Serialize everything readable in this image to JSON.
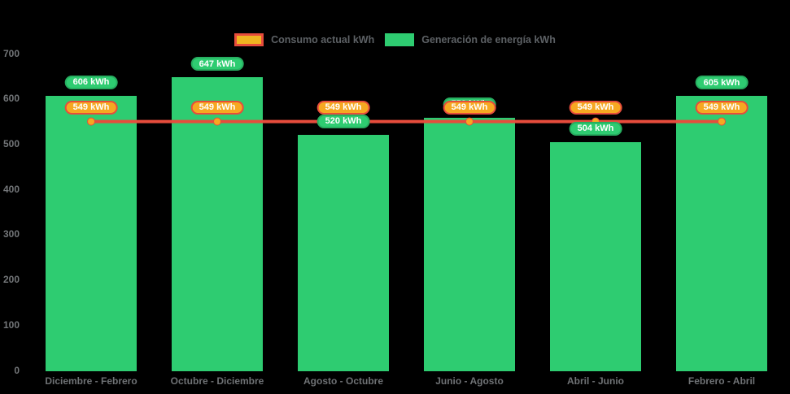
{
  "colors": {
    "background": "#000000",
    "bar_green": "#2ecc71",
    "bar_badge_border": "#27ae60",
    "line_red": "#e74c3c",
    "marker_orange": "#f6a821",
    "consumo_badge_bg": "#f6a821",
    "consumo_badge_border": "#e74c3c",
    "legend_swatch_consumo_fill": "#f0b421",
    "tick_text": "#737679",
    "legend_text": "#5d6165"
  },
  "legend": {
    "consumo_label": "Consumo actual kWh",
    "generacion_label": "Generación de energía kWh"
  },
  "chart_data": {
    "type": "bar",
    "subtype": "bar+line-combo",
    "background": "#000000",
    "grid": false,
    "legend_position": "top",
    "categories": [
      "Diciembre - Febrero",
      "Octubre - Diciembre",
      "Agosto - Octubre",
      "Junio - Agosto",
      "Abril - Junio",
      "Febrero - Abril"
    ],
    "series": [
      {
        "name": "Consumo actual kWh",
        "type": "line",
        "color": "#e74c3c",
        "marker_color": "#f6a821",
        "values": [
          549,
          549,
          549,
          549,
          549,
          549
        ],
        "labels": [
          "549 kWh",
          "549 kWh",
          "549 kWh",
          "549 kWh",
          "549 kWh",
          "549 kWh"
        ]
      },
      {
        "name": "Generación de energía kWh",
        "type": "bar",
        "color": "#2ecc71",
        "values": [
          606,
          647,
          520,
          558,
          504,
          605
        ],
        "labels": [
          "606 kWh",
          "647 kWh",
          "520 kWh",
          "558 kWh",
          "504 kWh",
          "605 kWh"
        ]
      }
    ],
    "ylim": [
      0,
      700
    ],
    "yticks": [
      0,
      100,
      200,
      300,
      400,
      500,
      600,
      700
    ],
    "xlabel": "",
    "ylabel": "",
    "title": ""
  }
}
